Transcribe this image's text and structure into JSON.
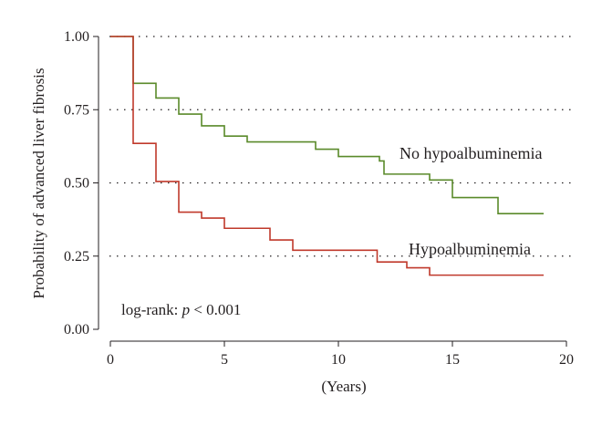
{
  "chart_data": {
    "type": "line",
    "subtype": "kaplan-meier step",
    "xlabel": "(Years)",
    "ylabel": "Probability of advanced liver fibrosis",
    "xlim": [
      0,
      20
    ],
    "ylim": [
      0,
      1
    ],
    "x_ticks": [
      "0",
      "5",
      "10",
      "15",
      "20"
    ],
    "y_ticks": [
      "0.00",
      "0.25",
      "0.50",
      "0.75",
      "1.00"
    ],
    "grid": "horizontal dotted",
    "series": [
      {
        "name": "No hypoalbuminemia",
        "color": "#5a8a2a",
        "points": [
          [
            0,
            1.0
          ],
          [
            1,
            0.84
          ],
          [
            2,
            0.79
          ],
          [
            3,
            0.735
          ],
          [
            4,
            0.695
          ],
          [
            5,
            0.66
          ],
          [
            6,
            0.64
          ],
          [
            9,
            0.615
          ],
          [
            10,
            0.59
          ],
          [
            11.8,
            0.575
          ],
          [
            12,
            0.53
          ],
          [
            14,
            0.51
          ],
          [
            15,
            0.45
          ],
          [
            17,
            0.395
          ],
          [
            19,
            0.395
          ]
        ]
      },
      {
        "name": "Hypoalbuminemia",
        "color": "#c0392b",
        "points": [
          [
            0,
            1.0
          ],
          [
            1,
            0.635
          ],
          [
            2,
            0.505
          ],
          [
            3,
            0.4
          ],
          [
            4,
            0.38
          ],
          [
            5,
            0.345
          ],
          [
            7,
            0.305
          ],
          [
            8,
            0.27
          ],
          [
            11.7,
            0.23
          ],
          [
            13,
            0.21
          ],
          [
            14,
            0.185
          ],
          [
            19,
            0.185
          ]
        ]
      }
    ],
    "annotation": {
      "prefix": "log-rank: ",
      "italic": "p",
      "suffix": " < 0.001"
    }
  }
}
